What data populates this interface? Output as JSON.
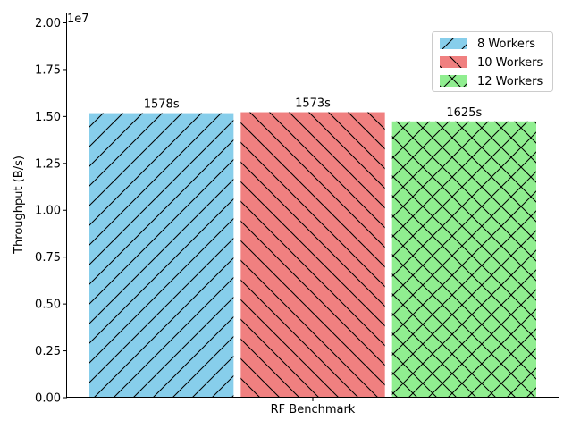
{
  "chart_data": {
    "type": "bar",
    "title": "",
    "xlabel": "RF Benchmark",
    "ylabel": "Throughput (B/s)",
    "y_offset_label": "1e7",
    "ylim": [
      0,
      20500000
    ],
    "yticks": [
      0,
      2500000,
      5000000,
      7500000,
      10000000,
      12500000,
      15000000,
      17500000,
      20000000
    ],
    "ytick_labels": [
      "0.00",
      "0.25",
      "0.50",
      "0.75",
      "1.00",
      "1.25",
      "1.50",
      "1.75",
      "2.00"
    ],
    "categories": [
      "RF Benchmark"
    ],
    "legend_position": "top-right",
    "grid": false,
    "series": [
      {
        "name": "8 Workers",
        "values": [
          15180000
        ],
        "color": "#87ceeb",
        "hatch": "/",
        "label": "1578s"
      },
      {
        "name": "10 Workers",
        "values": [
          15230000
        ],
        "color": "#f08080",
        "hatch": "\\",
        "label": "1573s"
      },
      {
        "name": "12 Workers",
        "values": [
          14740000
        ],
        "color": "#90ee90",
        "hatch": "x",
        "label": "1625s"
      }
    ]
  }
}
